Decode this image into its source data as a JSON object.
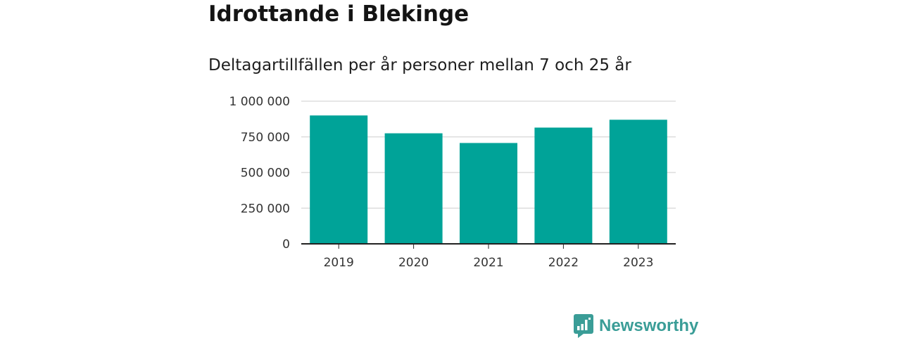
{
  "title": "Idrottande i Blekinge",
  "subtitle": "Deltagartillfällen per år personer mellan 7 och 25 år",
  "brand": {
    "name": "Newsworthy",
    "logo_icon": "newsworthy-chart-logo-icon",
    "color": "#3a9d97"
  },
  "colors": {
    "bar": "#00a398",
    "grid": "#dddddd",
    "axis": "#222222"
  },
  "chart_data": {
    "type": "bar",
    "categories": [
      "2019",
      "2020",
      "2021",
      "2022",
      "2023"
    ],
    "values": [
      900000,
      775000,
      707000,
      815000,
      870000
    ],
    "title": "",
    "xlabel": "",
    "ylabel": "",
    "ylim": [
      0,
      1000000
    ],
    "yticks": [
      0,
      250000,
      500000,
      750000,
      1000000
    ],
    "ytick_labels": [
      "0",
      "250 000",
      "500 000",
      "750 000",
      "1 000 000"
    ],
    "grid": true
  }
}
